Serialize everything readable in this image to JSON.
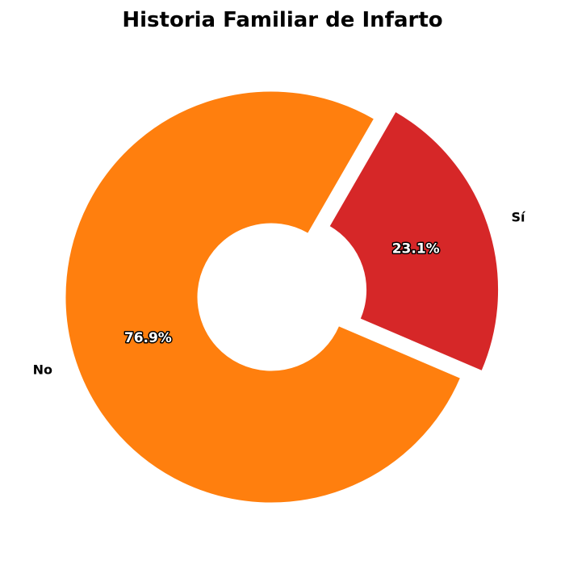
{
  "chart_data": {
    "type": "pie",
    "title": "Historia Familiar de Infarto",
    "donut": true,
    "categories": [
      "No",
      "Sí"
    ],
    "values": [
      76.9,
      23.1
    ],
    "percent_labels": [
      "76.9%",
      "23.1%"
    ],
    "colors": [
      "#ff7f0e",
      "#d62728"
    ],
    "exploded": [
      false,
      true
    ],
    "legend": "none",
    "grid": false
  }
}
